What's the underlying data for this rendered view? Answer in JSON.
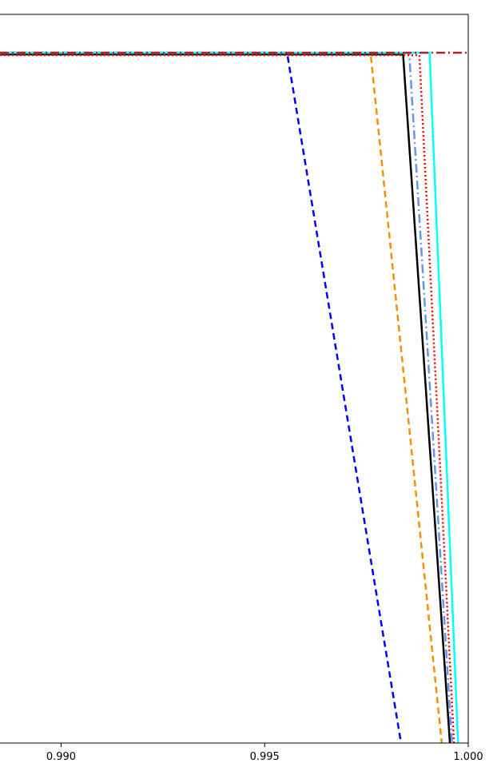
{
  "chart_data": {
    "type": "line",
    "title": "",
    "xlabel": "",
    "ylabel": "",
    "xlim": [
      0.9885,
      1.0
    ],
    "ylim": [
      0.0,
      1.0
    ],
    "xticks": [
      0.99,
      0.995,
      1.0
    ],
    "xtick_labels": [
      "0.990",
      "0.995",
      "1.000"
    ],
    "grid": false,
    "legend": "none",
    "series": [
      {
        "color": "#0000ff",
        "style": "dashed",
        "x": [
          0.9885,
          0.99555,
          0.99835
        ],
        "y": [
          1.0,
          1.0,
          0.0
        ]
      },
      {
        "color": "#ff8c00",
        "style": "dashed",
        "x": [
          0.9885,
          0.9976,
          0.99935
        ],
        "y": [
          0.9995,
          0.9995,
          0.0
        ]
      },
      {
        "color": "#000000",
        "style": "solid",
        "x": [
          0.9885,
          0.9984,
          0.99955
        ],
        "y": [
          0.9975,
          0.9975,
          0.0
        ]
      },
      {
        "color": "#6495ed",
        "style": "dashdot",
        "x": [
          0.9885,
          0.99855,
          0.9996
        ],
        "y": [
          0.9995,
          0.9995,
          0.0
        ]
      },
      {
        "color": "#ff0000",
        "style": "dotted",
        "x": [
          0.9885,
          0.9988,
          0.99965
        ],
        "y": [
          0.9965,
          0.9965,
          0.0
        ]
      },
      {
        "color": "#00ffff",
        "style": "solid",
        "x": [
          0.9885,
          0.99905,
          0.99975
        ],
        "y": [
          1.0,
          1.0,
          0.0
        ]
      },
      {
        "color": "#b22222",
        "style": "dashdot",
        "x": [
          0.9885,
          1.0
        ],
        "y": [
          1.0,
          1.0
        ]
      }
    ]
  }
}
